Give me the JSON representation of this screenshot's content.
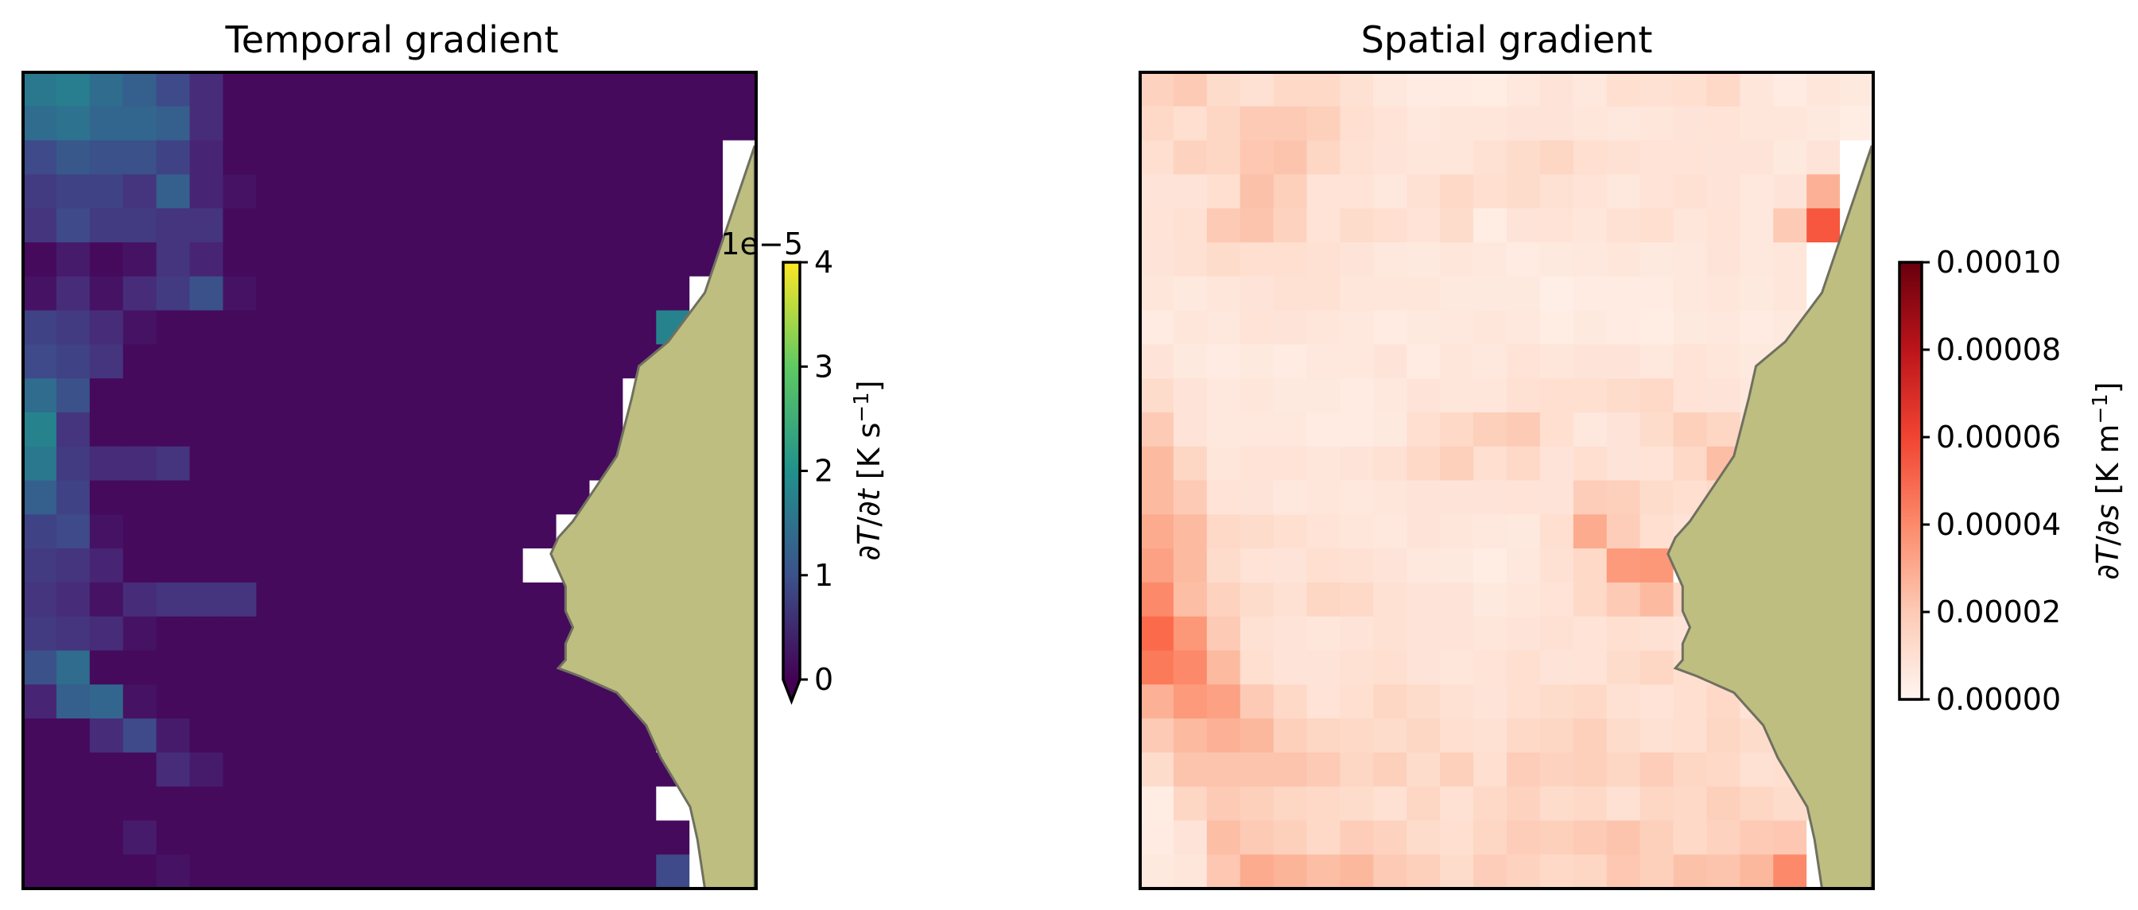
{
  "chart_data": [
    {
      "type": "heatmap",
      "title": "Temporal gradient",
      "colormap": "viridis",
      "grid": {
        "rows": 24,
        "cols": 22
      },
      "colorbar": {
        "label": "∂T/∂t [K s⁻¹]",
        "label_parts": {
          "prefix": "∂",
          "var1": "T",
          "mid": "/∂",
          "var2": "t",
          "units": " [K s",
          "exp": "−1",
          "close": "]"
        },
        "range": [
          0,
          4
        ],
        "ticks": [
          "0",
          "1",
          "2",
          "3",
          "4"
        ],
        "offset_text": "1e−5",
        "extend": "min"
      },
      "land_color": "#bdbe80",
      "mask_color": "#ffffff",
      "rows_values": [
        [
          1.6,
          1.7,
          1.4,
          1.2,
          0.9,
          0.5,
          0.1,
          0.1,
          0.1,
          0.1,
          0.1,
          0.1,
          0.1,
          0.1,
          0.1,
          0.1,
          0.1,
          0.1,
          0.1,
          0.1,
          0.1,
          0.1
        ],
        [
          1.4,
          1.5,
          1.3,
          1.3,
          1.2,
          0.5,
          0.1,
          0.1,
          0.1,
          0.1,
          0.1,
          0.1,
          0.1,
          0.1,
          0.1,
          0.1,
          0.1,
          0.1,
          0.1,
          0.1,
          0.1,
          0.1
        ],
        [
          0.9,
          1.1,
          1.0,
          1.0,
          0.8,
          0.4,
          0.1,
          0.1,
          0.1,
          0.1,
          0.1,
          0.1,
          0.1,
          0.1,
          0.1,
          0.1,
          0.1,
          0.1,
          0.1,
          0.1,
          0.1,
          null
        ],
        [
          0.7,
          0.8,
          0.8,
          0.6,
          1.2,
          0.4,
          0.2,
          0.1,
          0.1,
          0.1,
          0.1,
          0.1,
          0.1,
          0.1,
          0.1,
          0.1,
          0.1,
          0.1,
          0.1,
          0.1,
          0.1,
          null
        ],
        [
          0.6,
          0.9,
          0.7,
          0.7,
          0.6,
          0.6,
          0.1,
          0.1,
          0.1,
          0.1,
          0.1,
          0.1,
          0.1,
          0.1,
          0.1,
          0.1,
          0.1,
          0.1,
          0.1,
          0.1,
          0.1,
          null
        ],
        [
          0.1,
          0.3,
          0.1,
          0.2,
          0.6,
          0.4,
          0.1,
          0.1,
          0.1,
          0.1,
          0.1,
          0.1,
          0.1,
          0.1,
          0.1,
          0.1,
          0.1,
          0.1,
          0.1,
          0.1,
          0.1,
          null
        ],
        [
          0.2,
          0.5,
          0.2,
          0.5,
          0.7,
          1.0,
          0.2,
          0.1,
          0.1,
          0.1,
          0.1,
          0.1,
          0.1,
          0.1,
          0.1,
          0.1,
          0.1,
          0.1,
          0.1,
          0.1,
          null,
          null
        ],
        [
          0.8,
          0.7,
          0.5,
          0.2,
          0.1,
          0.1,
          0.1,
          0.1,
          0.1,
          0.1,
          0.1,
          0.1,
          0.1,
          0.1,
          0.1,
          0.1,
          0.1,
          0.1,
          0.1,
          1.8,
          null,
          null
        ],
        [
          0.9,
          0.8,
          0.6,
          0.1,
          0.1,
          0.1,
          0.1,
          0.1,
          0.1,
          0.1,
          0.1,
          0.1,
          0.1,
          0.1,
          0.1,
          0.1,
          0.1,
          0.1,
          0.1,
          0.1,
          null,
          null
        ],
        [
          1.4,
          1.0,
          0.1,
          0.1,
          0.1,
          0.1,
          0.1,
          0.1,
          0.1,
          0.1,
          0.1,
          0.1,
          0.1,
          0.1,
          0.1,
          0.1,
          0.1,
          0.1,
          null,
          null,
          null,
          null
        ],
        [
          1.8,
          0.6,
          0.1,
          0.1,
          0.1,
          0.1,
          0.1,
          0.1,
          0.1,
          0.1,
          0.1,
          0.1,
          0.1,
          0.1,
          0.1,
          0.1,
          0.1,
          0.1,
          null,
          null,
          null,
          null
        ],
        [
          1.6,
          0.7,
          0.5,
          0.5,
          0.6,
          0.1,
          0.1,
          0.1,
          0.1,
          0.1,
          0.1,
          0.1,
          0.1,
          0.1,
          0.1,
          0.1,
          0.1,
          0.1,
          null,
          null,
          null,
          null
        ],
        [
          1.2,
          0.8,
          0.1,
          0.1,
          0.1,
          0.1,
          0.1,
          0.1,
          0.1,
          0.1,
          0.1,
          0.1,
          0.1,
          0.1,
          0.1,
          0.1,
          0.1,
          null,
          null,
          null,
          null,
          null
        ],
        [
          0.8,
          0.9,
          0.2,
          0.1,
          0.1,
          0.1,
          0.1,
          0.1,
          0.1,
          0.1,
          0.1,
          0.1,
          0.1,
          0.1,
          0.1,
          0.1,
          null,
          null,
          null,
          null,
          null,
          null
        ],
        [
          0.7,
          0.6,
          0.4,
          0.1,
          0.1,
          0.1,
          0.1,
          0.1,
          0.1,
          0.1,
          0.1,
          0.1,
          0.1,
          0.1,
          0.1,
          null,
          null,
          null,
          null,
          null,
          null,
          null
        ],
        [
          0.6,
          0.5,
          0.2,
          0.5,
          0.6,
          0.6,
          0.6,
          0.1,
          0.1,
          0.1,
          0.1,
          0.1,
          0.1,
          0.1,
          0.1,
          0.1,
          0.1,
          null,
          null,
          null,
          null,
          null
        ],
        [
          0.7,
          0.6,
          0.5,
          0.2,
          0.1,
          0.1,
          0.1,
          0.1,
          0.1,
          0.1,
          0.1,
          0.1,
          0.1,
          0.1,
          0.1,
          0.1,
          0.1,
          null,
          null,
          null,
          null,
          null
        ],
        [
          1.0,
          1.4,
          0.1,
          0.1,
          0.1,
          0.1,
          0.1,
          0.1,
          0.1,
          0.1,
          0.1,
          0.1,
          0.1,
          0.1,
          0.1,
          0.1,
          0.1,
          0.1,
          null,
          null,
          null,
          null
        ],
        [
          0.4,
          1.2,
          1.3,
          0.2,
          0.1,
          0.1,
          0.1,
          0.1,
          0.1,
          0.1,
          0.1,
          0.1,
          0.1,
          0.1,
          0.1,
          0.1,
          0.1,
          0.1,
          0.1,
          null,
          null,
          null
        ],
        [
          0.1,
          0.1,
          0.5,
          0.9,
          0.3,
          0.1,
          0.1,
          0.1,
          0.1,
          0.1,
          0.1,
          0.1,
          0.1,
          0.1,
          0.1,
          0.1,
          0.1,
          0.1,
          0.1,
          null,
          null,
          null
        ],
        [
          0.1,
          0.1,
          0.1,
          0.1,
          0.5,
          0.3,
          0.1,
          0.1,
          0.1,
          0.1,
          0.1,
          0.1,
          0.1,
          0.1,
          0.1,
          0.1,
          0.1,
          0.1,
          0.1,
          0.1,
          null,
          null
        ],
        [
          0.1,
          0.1,
          0.1,
          0.1,
          0.1,
          0.1,
          0.1,
          0.1,
          0.1,
          0.1,
          0.1,
          0.1,
          0.1,
          0.1,
          0.1,
          0.1,
          0.1,
          0.1,
          0.1,
          null,
          null,
          null
        ],
        [
          0.1,
          0.1,
          0.1,
          0.3,
          0.1,
          0.1,
          0.1,
          0.1,
          0.1,
          0.1,
          0.1,
          0.1,
          0.1,
          0.1,
          0.1,
          0.1,
          0.1,
          0.1,
          0.1,
          0.1,
          null,
          null
        ],
        [
          0.1,
          0.1,
          0.1,
          0.1,
          0.2,
          0.1,
          0.1,
          0.1,
          0.1,
          0.1,
          0.1,
          0.1,
          0.1,
          0.1,
          0.1,
          0.1,
          0.1,
          0.1,
          0.1,
          0.9,
          null,
          null
        ]
      ]
    },
    {
      "type": "heatmap",
      "title": "Spatial gradient",
      "colormap": "Reds",
      "grid": {
        "rows": 24,
        "cols": 22
      },
      "colorbar": {
        "label": "∂T/∂s [K m⁻¹]",
        "label_parts": {
          "prefix": "∂",
          "var1": "T",
          "mid": "/∂",
          "var2": "s",
          "units": " [K m",
          "exp": "−1",
          "close": "]"
        },
        "range": [
          0,
          0.0001
        ],
        "ticks": [
          "0.00000",
          "0.00002",
          "0.00004",
          "0.00006",
          "0.00008",
          "0.00010"
        ],
        "offset_text": "",
        "extend": "neither"
      },
      "land_color": "#bdbe80",
      "mask_color": "#ffffff",
      "rows_values": [
        [
          1.7,
          2.0,
          1.4,
          1.2,
          1.5,
          1.5,
          1.2,
          0.8,
          0.6,
          0.6,
          0.5,
          0.8,
          1.0,
          0.8,
          1.3,
          1.2,
          1.3,
          1.5,
          0.9,
          0.6,
          0.9,
          0.7
        ],
        [
          1.5,
          1.3,
          1.6,
          2.0,
          2.0,
          1.8,
          1.3,
          1.1,
          0.8,
          0.9,
          0.9,
          1.0,
          1.0,
          0.9,
          0.8,
          0.9,
          1.0,
          1.1,
          0.9,
          0.9,
          0.7,
          0.5
        ],
        [
          1.3,
          1.7,
          1.6,
          2.1,
          2.2,
          1.6,
          1.2,
          1.0,
          0.9,
          0.9,
          1.2,
          1.4,
          1.6,
          1.3,
          1.2,
          1.1,
          1.1,
          1.0,
          1.0,
          0.7,
          1.0,
          null
        ],
        [
          1.0,
          1.0,
          1.3,
          2.3,
          1.8,
          1.1,
          1.1,
          0.8,
          1.2,
          1.5,
          1.3,
          1.4,
          1.2,
          1.1,
          0.8,
          1.1,
          1.2,
          1.0,
          0.8,
          1.0,
          2.8,
          null
        ],
        [
          1.1,
          1.2,
          2.0,
          2.2,
          1.7,
          1.1,
          1.4,
          1.3,
          1.1,
          1.4,
          0.5,
          1.0,
          1.1,
          0.9,
          1.2,
          1.3,
          0.9,
          1.1,
          0.8,
          2.0,
          5.5,
          null
        ],
        [
          1.0,
          1.2,
          1.4,
          1.3,
          1.3,
          1.2,
          1.0,
          0.8,
          0.7,
          0.9,
          0.8,
          0.6,
          0.7,
          0.8,
          0.9,
          0.7,
          0.8,
          1.0,
          0.8,
          0.9,
          null,
          null
        ],
        [
          0.9,
          0.7,
          0.9,
          1.0,
          1.2,
          1.2,
          0.9,
          0.9,
          0.9,
          0.7,
          0.7,
          0.7,
          0.4,
          0.6,
          0.6,
          0.6,
          0.8,
          0.9,
          0.7,
          0.9,
          null,
          null
        ],
        [
          0.6,
          0.9,
          0.8,
          1.1,
          1.0,
          0.9,
          0.8,
          0.6,
          0.7,
          0.8,
          0.9,
          0.8,
          0.5,
          0.7,
          0.6,
          0.5,
          0.7,
          0.8,
          0.6,
          0.7,
          null,
          null
        ],
        [
          1.0,
          0.7,
          0.6,
          0.7,
          0.6,
          0.8,
          0.8,
          1.0,
          0.6,
          0.9,
          0.8,
          1.1,
          0.9,
          1.0,
          1.0,
          0.8,
          1.1,
          0.9,
          0.7,
          0.8,
          0.7,
          null
        ],
        [
          1.4,
          1.0,
          0.8,
          0.9,
          0.7,
          0.7,
          0.6,
          0.8,
          1.0,
          0.9,
          0.9,
          1.2,
          1.3,
          1.3,
          1.4,
          1.5,
          1.1,
          1.0,
          0.8,
          null,
          null,
          null
        ],
        [
          2.0,
          1.0,
          0.8,
          0.8,
          0.8,
          0.6,
          0.6,
          0.7,
          1.3,
          1.5,
          1.8,
          2.0,
          1.3,
          0.8,
          1.0,
          1.4,
          1.8,
          1.6,
          1.1,
          null,
          null,
          null
        ],
        [
          2.5,
          1.6,
          0.9,
          1.1,
          1.1,
          0.9,
          1.0,
          1.2,
          1.5,
          1.8,
          1.3,
          1.5,
          1.0,
          1.3,
          1.0,
          1.1,
          1.5,
          2.4,
          3.8,
          null,
          null,
          null
        ],
        [
          2.5,
          2.0,
          1.1,
          1.0,
          0.8,
          0.9,
          0.8,
          0.9,
          1.0,
          1.0,
          1.0,
          1.1,
          1.0,
          1.9,
          1.8,
          1.4,
          1.3,
          1.5,
          null,
          null,
          null,
          null
        ],
        [
          3.0,
          2.5,
          1.5,
          1.4,
          1.3,
          1.1,
          0.9,
          0.8,
          1.0,
          0.9,
          0.8,
          0.7,
          1.3,
          3.0,
          1.9,
          1.3,
          1.1,
          null,
          null,
          null,
          null,
          null
        ],
        [
          3.3,
          2.5,
          1.4,
          1.1,
          1.0,
          1.3,
          1.2,
          1.0,
          0.8,
          0.7,
          0.5,
          0.8,
          1.2,
          1.5,
          3.5,
          3.6,
          null,
          null,
          null,
          null,
          null,
          null
        ],
        [
          4.0,
          2.4,
          1.7,
          1.4,
          1.2,
          1.6,
          1.5,
          1.2,
          1.0,
          1.0,
          0.7,
          0.9,
          1.1,
          1.5,
          2.0,
          2.5,
          1.5,
          null,
          null,
          null,
          null,
          null
        ],
        [
          5.0,
          3.6,
          2.0,
          1.2,
          1.0,
          0.9,
          1.0,
          1.2,
          1.0,
          1.0,
          0.9,
          1.0,
          1.2,
          1.1,
          1.3,
          1.2,
          1.0,
          null,
          null,
          null,
          null,
          null
        ],
        [
          4.5,
          4.0,
          2.5,
          1.3,
          1.0,
          1.0,
          1.2,
          1.3,
          1.0,
          0.9,
          1.1,
          1.3,
          1.0,
          1.1,
          1.4,
          1.6,
          1.3,
          1.0,
          null,
          null,
          null,
          null
        ],
        [
          2.8,
          3.5,
          3.3,
          2.0,
          1.5,
          1.1,
          1.3,
          1.6,
          1.4,
          1.2,
          1.0,
          1.3,
          1.4,
          1.5,
          1.2,
          1.1,
          1.3,
          1.5,
          1.1,
          null,
          null,
          null
        ],
        [
          2.0,
          2.5,
          2.8,
          2.6,
          1.8,
          1.6,
          1.5,
          1.4,
          1.6,
          1.3,
          1.2,
          1.5,
          1.6,
          1.8,
          1.4,
          1.2,
          1.3,
          1.6,
          1.4,
          0.9,
          null,
          null
        ],
        [
          1.4,
          2.2,
          2.2,
          2.2,
          2.2,
          2.0,
          1.6,
          1.8,
          1.4,
          1.8,
          1.3,
          1.9,
          1.7,
          1.8,
          1.6,
          1.9,
          1.6,
          1.5,
          1.2,
          1.3,
          null,
          null
        ],
        [
          0.5,
          1.6,
          2.0,
          1.8,
          1.6,
          1.5,
          1.4,
          1.2,
          1.6,
          1.2,
          1.5,
          1.7,
          1.4,
          1.5,
          1.2,
          1.6,
          1.5,
          1.8,
          1.6,
          1.4,
          1.2,
          null
        ],
        [
          0.6,
          1.0,
          2.4,
          2.0,
          1.8,
          1.5,
          1.9,
          1.7,
          1.4,
          1.3,
          1.6,
          1.9,
          1.8,
          2.0,
          2.2,
          1.8,
          1.5,
          1.7,
          2.0,
          2.1,
          null,
          null
        ],
        [
          0.7,
          0.9,
          2.1,
          3.0,
          2.7,
          2.4,
          2.6,
          2.0,
          1.8,
          1.4,
          1.9,
          1.7,
          1.5,
          1.6,
          2.1,
          1.8,
          2.3,
          2.2,
          2.6,
          4.0,
          null,
          null
        ]
      ],
      "value_scale_note": "×1e−5"
    }
  ]
}
